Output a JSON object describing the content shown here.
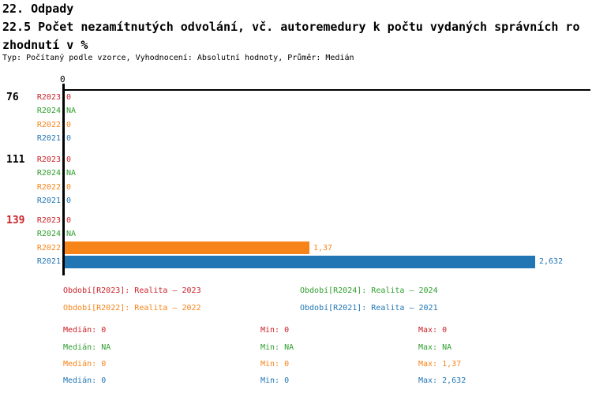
{
  "header": {
    "line1": "22. Odpady",
    "line2": "22.5 Počet nezamítnutých odvolání, vč. autoremedury k počtu vydaných správních ro",
    "line3": "zhodnutí v %",
    "meta": "Typ: Počítaný podle vzorce, Vyhodnocení: Absolutní hodnoty, Průměr: Medián"
  },
  "colors": {
    "R2023": "#cc2229",
    "R2024": "#2e9e2e",
    "R2022": "#f78419",
    "R2021": "#2276b4",
    "highlight": "#cc2229",
    "axis": "#000000"
  },
  "chart_data": {
    "type": "bar",
    "orientation": "horizontal",
    "axis_origin_label": "0",
    "xlim": [
      0,
      2.93
    ],
    "grid": false,
    "groups": [
      {
        "label": "76",
        "highlighted": false,
        "rows": [
          {
            "series": "R2023",
            "text": "0",
            "value": 0
          },
          {
            "series": "R2024",
            "text": "NA",
            "value": null
          },
          {
            "series": "R2022",
            "text": "0",
            "value": 0
          },
          {
            "series": "R2021",
            "text": "0",
            "value": 0
          }
        ]
      },
      {
        "label": "111",
        "highlighted": false,
        "rows": [
          {
            "series": "R2023",
            "text": "0",
            "value": 0
          },
          {
            "series": "R2024",
            "text": "NA",
            "value": null
          },
          {
            "series": "R2022",
            "text": "0",
            "value": 0
          },
          {
            "series": "R2021",
            "text": "0",
            "value": 0
          }
        ]
      },
      {
        "label": "139",
        "highlighted": true,
        "rows": [
          {
            "series": "R2023",
            "text": "0",
            "value": 0
          },
          {
            "series": "R2024",
            "text": "NA",
            "value": null
          },
          {
            "series": "R2022",
            "text": "1,37",
            "value": 1.37
          },
          {
            "series": "R2021",
            "text": "2,632",
            "value": 2.632
          }
        ]
      }
    ]
  },
  "legend": {
    "items": [
      {
        "series": "R2023",
        "label": "Období[R2023]: Realita – 2023"
      },
      {
        "series": "R2024",
        "label": "Období[R2024]: Realita – 2024"
      },
      {
        "series": "R2022",
        "label": "Období[R2022]: Realita – 2022"
      },
      {
        "series": "R2021",
        "label": "Období[R2021]: Realita – 2021"
      }
    ]
  },
  "stats": {
    "labels": {
      "median": "Medián:",
      "min": "Min:",
      "max": "Max:"
    },
    "rows": [
      {
        "series": "R2023",
        "median": "0",
        "min": "0",
        "max": "0"
      },
      {
        "series": "R2024",
        "median": "NA",
        "min": "NA",
        "max": "NA"
      },
      {
        "series": "R2022",
        "median": "0",
        "min": "0",
        "max": "1,37"
      },
      {
        "series": "R2021",
        "median": "0",
        "min": "0",
        "max": "2,632"
      }
    ]
  }
}
